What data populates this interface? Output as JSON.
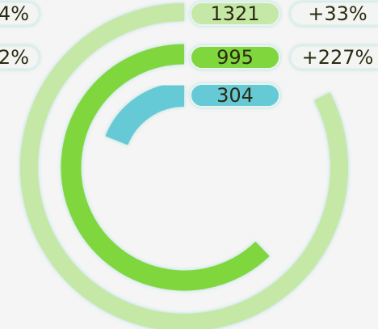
{
  "chart_data": {
    "type": "radial_bar",
    "values": [
      1321,
      995,
      304
    ],
    "colors": [
      "#c6e8a7",
      "#80d63c",
      "#66cad6"
    ],
    "changes": [
      "+33%",
      "+227%",
      null
    ],
    "side_labels": [
      "4%",
      "2%"
    ],
    "rlim": [
      0,
      1600
    ]
  }
}
